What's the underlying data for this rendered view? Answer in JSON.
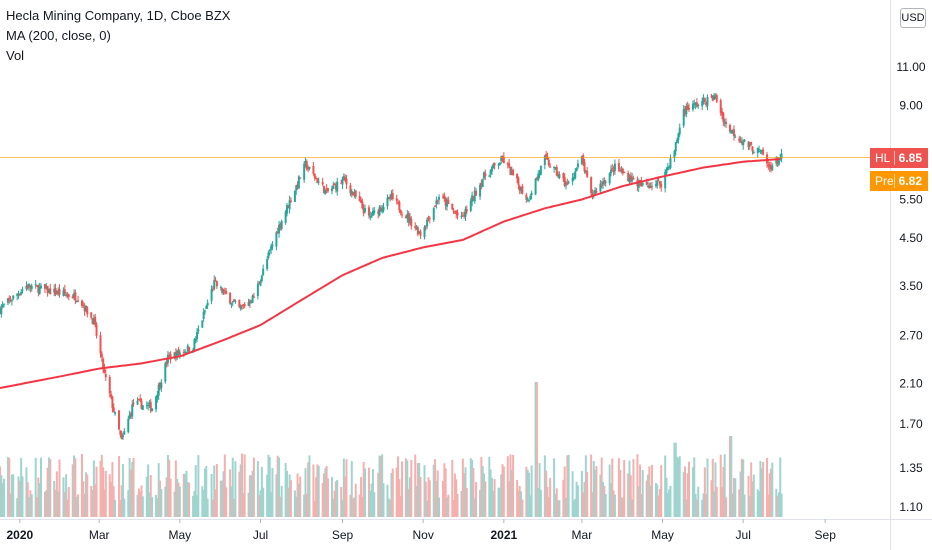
{
  "legend": {
    "symbol_line": "Hecla Mining Company, 1D, Cboe BZX",
    "ma_line": "MA (200, close, 0)",
    "vol_line": "Vol"
  },
  "currency": "USD",
  "price_tags": {
    "last": {
      "symbol": "HL",
      "value": "6.85",
      "color": "#ef5350"
    },
    "pre": {
      "symbol": "Pre",
      "value": "6.82",
      "color": "#ff9800"
    }
  },
  "colors": {
    "up": "#26a69a",
    "down": "#ef5350",
    "ma": "#f23645",
    "last_price_line": "#ff9800",
    "vol_up": "#9fd4cf",
    "vol_down": "#f5b0ae"
  },
  "chart_data": {
    "type": "candlestick",
    "scale": "log",
    "y_ticks": [
      1.1,
      1.35,
      1.7,
      2.1,
      2.7,
      3.5,
      4.5,
      5.5,
      6.85,
      9.0,
      11.0
    ],
    "y_tick_labels": [
      "1.10",
      "1.35",
      "1.70",
      "2.10",
      "2.70",
      "3.50",
      "4.50",
      "5.50",
      "",
      "9.00",
      "11.00"
    ],
    "x_ticks": [
      {
        "date": "2020-01-01",
        "label": "2020"
      },
      {
        "date": "2020-03-01",
        "label": "Mar"
      },
      {
        "date": "2020-05-01",
        "label": "May"
      },
      {
        "date": "2020-07-01",
        "label": "Jul"
      },
      {
        "date": "2020-09-01",
        "label": "Sep"
      },
      {
        "date": "2020-11-01",
        "label": "Nov"
      },
      {
        "date": "2021-01-01",
        "label": "2021"
      },
      {
        "date": "2021-03-01",
        "label": "Mar"
      },
      {
        "date": "2021-05-01",
        "label": "May"
      },
      {
        "date": "2021-07-01",
        "label": "Jul"
      },
      {
        "date": "2021-09-01",
        "label": "Sep"
      }
    ],
    "x_range": [
      "2019-12-17",
      "2021-10-20"
    ],
    "price_anchors": [
      {
        "date": "2019-12-17",
        "close": 3.1
      },
      {
        "date": "2020-01-06",
        "close": 3.5
      },
      {
        "date": "2020-02-14",
        "close": 3.3
      },
      {
        "date": "2020-02-26",
        "close": 2.9
      },
      {
        "date": "2020-03-05",
        "close": 2.2
      },
      {
        "date": "2020-03-18",
        "close": 1.55
      },
      {
        "date": "2020-03-27",
        "close": 1.9
      },
      {
        "date": "2020-04-10",
        "close": 1.85
      },
      {
        "date": "2020-04-22",
        "close": 2.4
      },
      {
        "date": "2020-05-11",
        "close": 2.55
      },
      {
        "date": "2020-05-27",
        "close": 3.55
      },
      {
        "date": "2020-06-15",
        "close": 3.1
      },
      {
        "date": "2020-06-26",
        "close": 3.3
      },
      {
        "date": "2020-07-14",
        "close": 4.7
      },
      {
        "date": "2020-08-04",
        "close": 6.6
      },
      {
        "date": "2020-08-20",
        "close": 5.7
      },
      {
        "date": "2020-09-02",
        "close": 6.1
      },
      {
        "date": "2020-09-21",
        "close": 5.0
      },
      {
        "date": "2020-10-08",
        "close": 5.55
      },
      {
        "date": "2020-10-30",
        "close": 4.6
      },
      {
        "date": "2020-11-13",
        "close": 5.6
      },
      {
        "date": "2020-11-30",
        "close": 4.95
      },
      {
        "date": "2020-12-17",
        "close": 6.2
      },
      {
        "date": "2020-12-31",
        "close": 6.8
      },
      {
        "date": "2021-01-19",
        "close": 5.5
      },
      {
        "date": "2021-02-01",
        "close": 6.8
      },
      {
        "date": "2021-02-18",
        "close": 5.9
      },
      {
        "date": "2021-03-01",
        "close": 6.8
      },
      {
        "date": "2021-03-08",
        "close": 5.6
      },
      {
        "date": "2021-03-26",
        "close": 6.5
      },
      {
        "date": "2021-04-15",
        "close": 5.9
      },
      {
        "date": "2021-04-30",
        "close": 6.0
      },
      {
        "date": "2021-05-10",
        "close": 7.1
      },
      {
        "date": "2021-05-17",
        "close": 8.8
      },
      {
        "date": "2021-06-10",
        "close": 9.4
      },
      {
        "date": "2021-06-18",
        "close": 8.1
      },
      {
        "date": "2021-07-02",
        "close": 7.4
      },
      {
        "date": "2021-07-16",
        "close": 6.95
      },
      {
        "date": "2021-07-20",
        "close": 6.5
      },
      {
        "date": "2021-07-30",
        "close": 6.85
      }
    ],
    "ma_anchors": [
      {
        "date": "2019-12-17",
        "value": 2.05
      },
      {
        "date": "2020-02-01",
        "value": 2.18
      },
      {
        "date": "2020-03-01",
        "value": 2.27
      },
      {
        "date": "2020-04-01",
        "value": 2.33
      },
      {
        "date": "2020-05-01",
        "value": 2.42
      },
      {
        "date": "2020-06-01",
        "value": 2.62
      },
      {
        "date": "2020-07-01",
        "value": 2.85
      },
      {
        "date": "2020-08-01",
        "value": 3.25
      },
      {
        "date": "2020-09-01",
        "value": 3.7
      },
      {
        "date": "2020-10-01",
        "value": 4.05
      },
      {
        "date": "2020-11-01",
        "value": 4.28
      },
      {
        "date": "2020-12-01",
        "value": 4.45
      },
      {
        "date": "2021-01-01",
        "value": 4.9
      },
      {
        "date": "2021-02-01",
        "value": 5.25
      },
      {
        "date": "2021-03-01",
        "value": 5.5
      },
      {
        "date": "2021-04-01",
        "value": 5.9
      },
      {
        "date": "2021-05-01",
        "value": 6.2
      },
      {
        "date": "2021-06-01",
        "value": 6.5
      },
      {
        "date": "2021-07-01",
        "value": 6.7
      },
      {
        "date": "2021-07-30",
        "value": 6.8
      }
    ],
    "volume_spikes": [
      {
        "date": "2021-01-25",
        "level": 1.0
      },
      {
        "date": "2021-05-10",
        "level": 0.55
      },
      {
        "date": "2021-06-21",
        "level": 0.6
      }
    ],
    "last_price": 6.85,
    "premarket_price": 6.82
  }
}
